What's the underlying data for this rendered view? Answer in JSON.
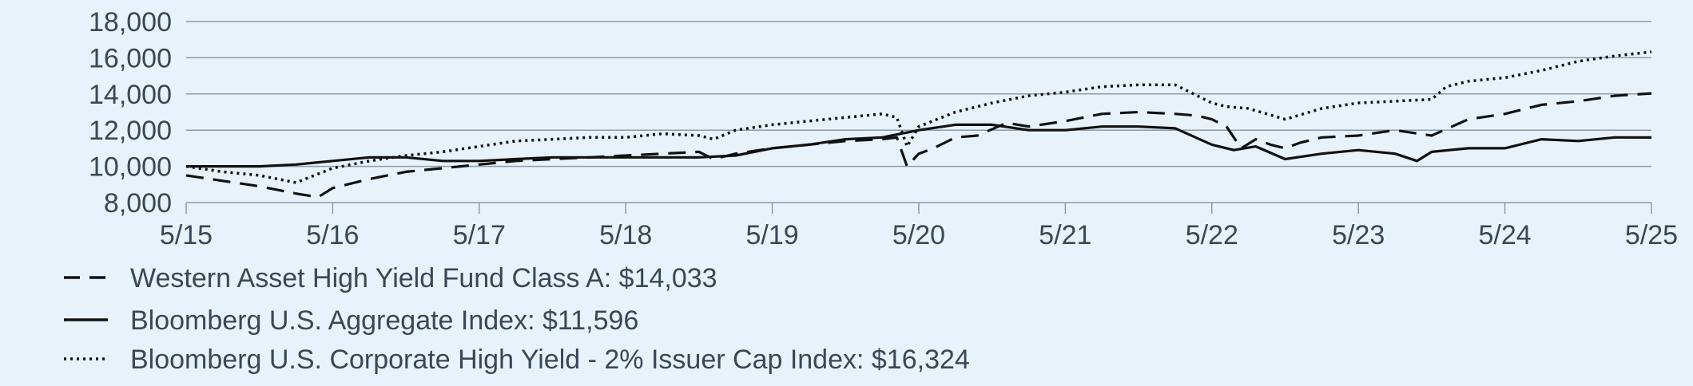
{
  "chart_data": {
    "type": "line",
    "title": "",
    "xlabel": "",
    "ylabel": "",
    "ylim": [
      8000,
      18000
    ],
    "y_ticks": [
      8000,
      10000,
      12000,
      14000,
      16000,
      18000
    ],
    "y_tick_labels": [
      "8,000",
      "10,000",
      "12,000",
      "14,000",
      "16,000",
      "18,000"
    ],
    "x_range": [
      0,
      10
    ],
    "x_ticks": [
      0,
      1,
      2,
      3,
      4,
      5,
      6,
      7,
      8,
      9,
      10
    ],
    "x_tick_labels": [
      "5/15",
      "5/16",
      "5/17",
      "5/18",
      "5/19",
      "5/20",
      "5/21",
      "5/22",
      "5/23",
      "5/24",
      "5/25"
    ],
    "grid": true,
    "legend_position": "bottom-left",
    "colors": {
      "background": "#e8f2fb",
      "grid": "#8f9aa6",
      "axis": "#8f9aa6",
      "text": "#3b4656",
      "line": "#111111"
    },
    "series": [
      {
        "name": "Western Asset High Yield Fund Class A: $14,033",
        "style": "dashed",
        "x": [
          0,
          0.25,
          0.5,
          0.75,
          0.9,
          1.0,
          1.25,
          1.5,
          1.75,
          2.0,
          2.25,
          2.5,
          2.75,
          3.0,
          3.25,
          3.5,
          3.6,
          3.75,
          4.0,
          4.25,
          4.5,
          4.75,
          4.85,
          4.92,
          5.0,
          5.1,
          5.25,
          5.4,
          5.6,
          5.75,
          6.0,
          6.25,
          6.5,
          6.75,
          6.9,
          7.0,
          7.1,
          7.2,
          7.3,
          7.4,
          7.5,
          7.6,
          7.75,
          8.0,
          8.25,
          8.5,
          8.75,
          9.0,
          9.25,
          9.5,
          9.75,
          10.0
        ],
        "values": [
          9500,
          9200,
          8900,
          8500,
          8300,
          8800,
          9300,
          9700,
          9900,
          10100,
          10300,
          10400,
          10500,
          10600,
          10700,
          10800,
          10400,
          10700,
          11000,
          11200,
          11400,
          11500,
          11600,
          10000,
          10700,
          11000,
          11600,
          11700,
          12400,
          12200,
          12500,
          12900,
          13000,
          12900,
          12800,
          12600,
          12200,
          11000,
          11500,
          11200,
          11000,
          11300,
          11600,
          11700,
          12000,
          11700,
          12600,
          12900,
          13400,
          13600,
          13900,
          14033
        ]
      },
      {
        "name": "Bloomberg U.S. Aggregate Index: $11,596",
        "style": "solid",
        "x": [
          0,
          0.25,
          0.5,
          0.75,
          1.0,
          1.25,
          1.5,
          1.75,
          2.0,
          2.25,
          2.5,
          2.75,
          3.0,
          3.25,
          3.5,
          3.75,
          4.0,
          4.25,
          4.5,
          4.75,
          5.0,
          5.25,
          5.5,
          5.75,
          6.0,
          6.25,
          6.5,
          6.75,
          7.0,
          7.15,
          7.3,
          7.5,
          7.75,
          8.0,
          8.25,
          8.4,
          8.5,
          8.75,
          9.0,
          9.25,
          9.5,
          9.75,
          10.0
        ],
        "values": [
          10000,
          10000,
          10000,
          10100,
          10300,
          10500,
          10500,
          10300,
          10300,
          10400,
          10500,
          10500,
          10500,
          10500,
          10500,
          10600,
          11000,
          11200,
          11500,
          11600,
          12000,
          12300,
          12300,
          12000,
          12000,
          12200,
          12200,
          12100,
          11200,
          10900,
          11100,
          10400,
          10700,
          10900,
          10700,
          10300,
          10800,
          11000,
          11000,
          11500,
          11400,
          11600,
          11596
        ]
      },
      {
        "name": "Bloomberg U.S. Corporate High Yield - 2% Issuer Cap Index: $16,324",
        "style": "dotted",
        "x": [
          0,
          0.25,
          0.5,
          0.75,
          1.0,
          1.25,
          1.5,
          1.75,
          2.0,
          2.25,
          2.5,
          2.75,
          3.0,
          3.25,
          3.5,
          3.6,
          3.75,
          4.0,
          4.25,
          4.5,
          4.75,
          4.85,
          4.92,
          5.0,
          5.25,
          5.5,
          5.75,
          6.0,
          6.25,
          6.5,
          6.75,
          7.0,
          7.1,
          7.25,
          7.5,
          7.75,
          8.0,
          8.25,
          8.5,
          8.6,
          8.75,
          9.0,
          9.25,
          9.5,
          9.75,
          10.0
        ],
        "values": [
          10000,
          9700,
          9500,
          9100,
          9900,
          10300,
          10600,
          10800,
          11100,
          11400,
          11500,
          11600,
          11600,
          11800,
          11700,
          11500,
          12000,
          12300,
          12500,
          12700,
          12900,
          12700,
          11100,
          12200,
          13000,
          13500,
          13900,
          14100,
          14400,
          14500,
          14500,
          13500,
          13300,
          13200,
          12600,
          13200,
          13500,
          13600,
          13700,
          14400,
          14700,
          14900,
          15300,
          15800,
          16100,
          16324
        ]
      }
    ]
  }
}
